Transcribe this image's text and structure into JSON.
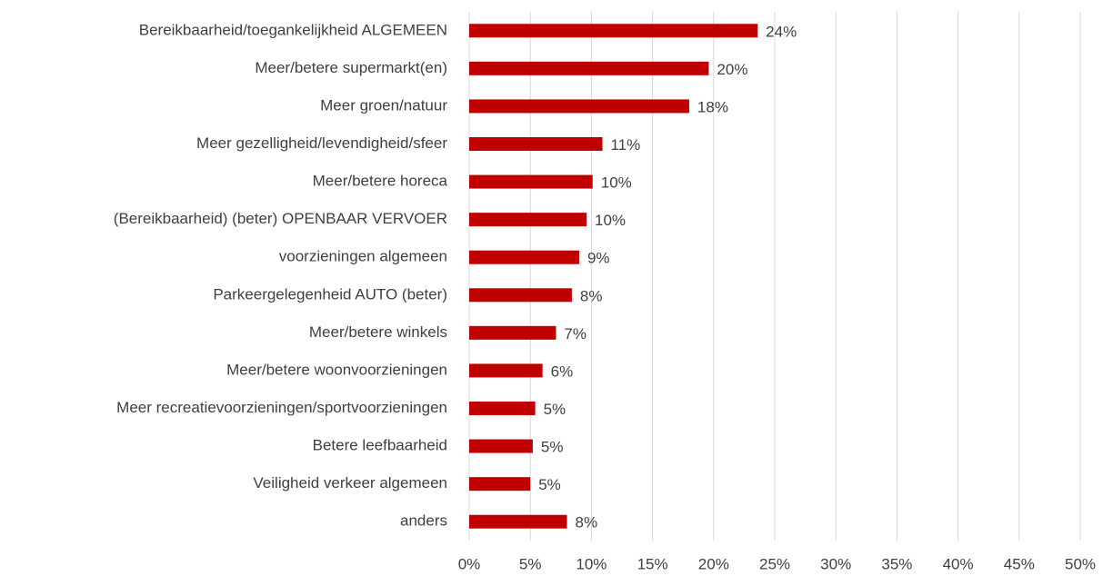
{
  "chart_data": {
    "type": "barh",
    "categories": [
      "Bereikbaarheid/toegankelijkheid ALGEMEEN",
      "Meer/betere supermarkt(en)",
      "Meer groen/natuur",
      "Meer gezelligheid/levendigheid/sfeer",
      "Meer/betere horeca",
      "(Bereikbaarheid) (beter) OPENBAAR VERVOER",
      "voorzieningen algemeen",
      "Parkeergelegenheid AUTO (beter)",
      "Meer/betere winkels",
      "Meer/betere woonvoorzieningen",
      "Meer recreatievoorzieningen/sportvoorzieningen",
      "Betere leefbaarheid",
      "Veiligheid verkeer algemeen",
      "anders"
    ],
    "values": [
      23.6,
      19.6,
      18.0,
      10.9,
      10.1,
      9.6,
      9.0,
      8.4,
      7.1,
      6.0,
      5.4,
      5.2,
      5.0,
      8.0
    ],
    "value_labels": [
      "24%",
      "20%",
      "18%",
      "11%",
      "10%",
      "10%",
      "9%",
      "8%",
      "7%",
      "6%",
      "5%",
      "5%",
      "5%",
      "8%"
    ],
    "color": "#c00000",
    "xlim": [
      0,
      50
    ],
    "xticks": [
      {
        "value": 0,
        "label": "0%"
      },
      {
        "value": 5,
        "label": "5%"
      },
      {
        "value": 10,
        "label": "10%"
      },
      {
        "value": 15,
        "label": "15%"
      },
      {
        "value": 20,
        "label": "20%"
      },
      {
        "value": 25,
        "label": "25%"
      },
      {
        "value": 30,
        "label": "30%"
      },
      {
        "value": 35,
        "label": "35%"
      },
      {
        "value": 40,
        "label": "40%"
      },
      {
        "value": 45,
        "label": "45%"
      },
      {
        "value": 50,
        "label": "50%"
      }
    ],
    "grid": true
  }
}
